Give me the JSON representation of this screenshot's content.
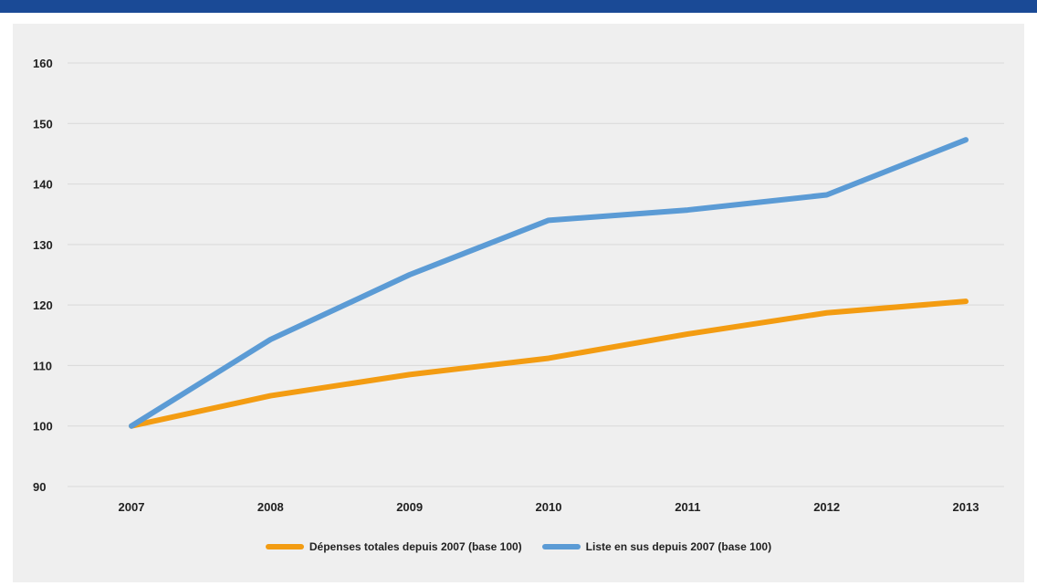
{
  "chart_data": {
    "type": "line",
    "x": [
      "2007",
      "2008",
      "2009",
      "2010",
      "2011",
      "2012",
      "2013"
    ],
    "yticks": [
      90,
      100,
      110,
      120,
      130,
      140,
      150,
      160
    ],
    "ylim": [
      90,
      160
    ],
    "grid": true,
    "legend_position": "bottom",
    "series": [
      {
        "name": "Dépenses totales depuis 2007 (base 100)",
        "color": "#f39c12",
        "values": [
          100,
          105,
          108.5,
          111.2,
          115.2,
          118.7,
          120.6
        ]
      },
      {
        "name": "Liste en sus depuis 2007 (base 100)",
        "color": "#5b9bd5",
        "values": [
          100,
          114.3,
          125,
          134,
          135.7,
          138.2,
          147.3
        ]
      }
    ]
  },
  "colors": {
    "top_bar": "#1a4a96",
    "background": "#efefef",
    "grid": "#d9d9d9"
  }
}
